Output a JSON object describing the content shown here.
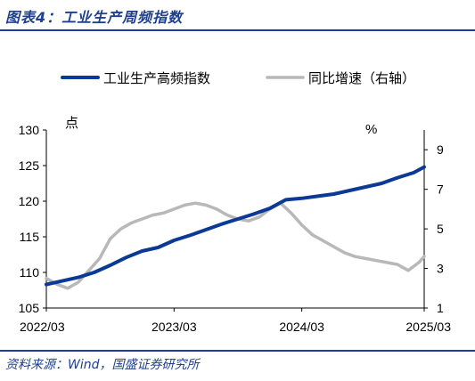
{
  "header": {
    "title": "图表4：工业生产周频指数"
  },
  "footer": {
    "source": "资料来源：Wind，国盛证券研究所"
  },
  "chart_data": {
    "type": "line",
    "legend_placement": "top",
    "left_axis": {
      "unit_label": "点",
      "min": 105,
      "max": 130,
      "ticks": [
        "105",
        "110",
        "115",
        "120",
        "125",
        "130"
      ]
    },
    "right_axis": {
      "unit_label": "%",
      "min": 1,
      "max": 10,
      "ticks": [
        "1",
        "3",
        "5",
        "7",
        "9"
      ]
    },
    "x_axis": {
      "ticks": [
        "2022/03",
        "2023/03",
        "2024/03",
        "2025/03"
      ]
    },
    "series": [
      {
        "name": "工业生产高频指数",
        "axis": "left",
        "color": "#0a3a96",
        "points": [
          [
            0,
            108.3
          ],
          [
            3,
            108.8
          ],
          [
            6,
            109.3
          ],
          [
            9,
            110.0
          ],
          [
            12,
            111.0
          ],
          [
            15,
            112.1
          ],
          [
            18,
            113.0
          ],
          [
            21,
            113.5
          ],
          [
            24,
            114.5
          ],
          [
            27,
            115.2
          ],
          [
            30,
            116.0
          ],
          [
            33,
            116.8
          ],
          [
            36,
            117.5
          ],
          [
            39,
            118.2
          ],
          [
            42,
            119.0
          ],
          [
            45,
            120.2
          ],
          [
            48,
            120.4
          ],
          [
            51,
            120.7
          ],
          [
            54,
            121.0
          ],
          [
            57,
            121.5
          ],
          [
            60,
            122.0
          ],
          [
            63,
            122.5
          ],
          [
            66,
            123.3
          ],
          [
            69,
            124.0
          ],
          [
            71,
            124.8
          ]
        ]
      },
      {
        "name": "同比增速（右轴）",
        "axis": "right",
        "color": "#b8b8b8",
        "points": [
          [
            0,
            2.5
          ],
          [
            2,
            2.2
          ],
          [
            4,
            2.0
          ],
          [
            6,
            2.3
          ],
          [
            8,
            2.9
          ],
          [
            10,
            3.5
          ],
          [
            12,
            4.5
          ],
          [
            14,
            5.0
          ],
          [
            16,
            5.3
          ],
          [
            18,
            5.5
          ],
          [
            20,
            5.7
          ],
          [
            22,
            5.8
          ],
          [
            24,
            6.0
          ],
          [
            26,
            6.2
          ],
          [
            28,
            6.3
          ],
          [
            30,
            6.2
          ],
          [
            32,
            6.0
          ],
          [
            34,
            5.7
          ],
          [
            36,
            5.5
          ],
          [
            38,
            5.4
          ],
          [
            40,
            5.6
          ],
          [
            42,
            6.0
          ],
          [
            44,
            6.3
          ],
          [
            46,
            5.8
          ],
          [
            48,
            5.2
          ],
          [
            50,
            4.7
          ],
          [
            52,
            4.4
          ],
          [
            54,
            4.1
          ],
          [
            56,
            3.8
          ],
          [
            58,
            3.6
          ],
          [
            60,
            3.5
          ],
          [
            62,
            3.4
          ],
          [
            64,
            3.3
          ],
          [
            66,
            3.2
          ],
          [
            68,
            2.9
          ],
          [
            70,
            3.3
          ],
          [
            71,
            3.6
          ]
        ]
      }
    ]
  }
}
